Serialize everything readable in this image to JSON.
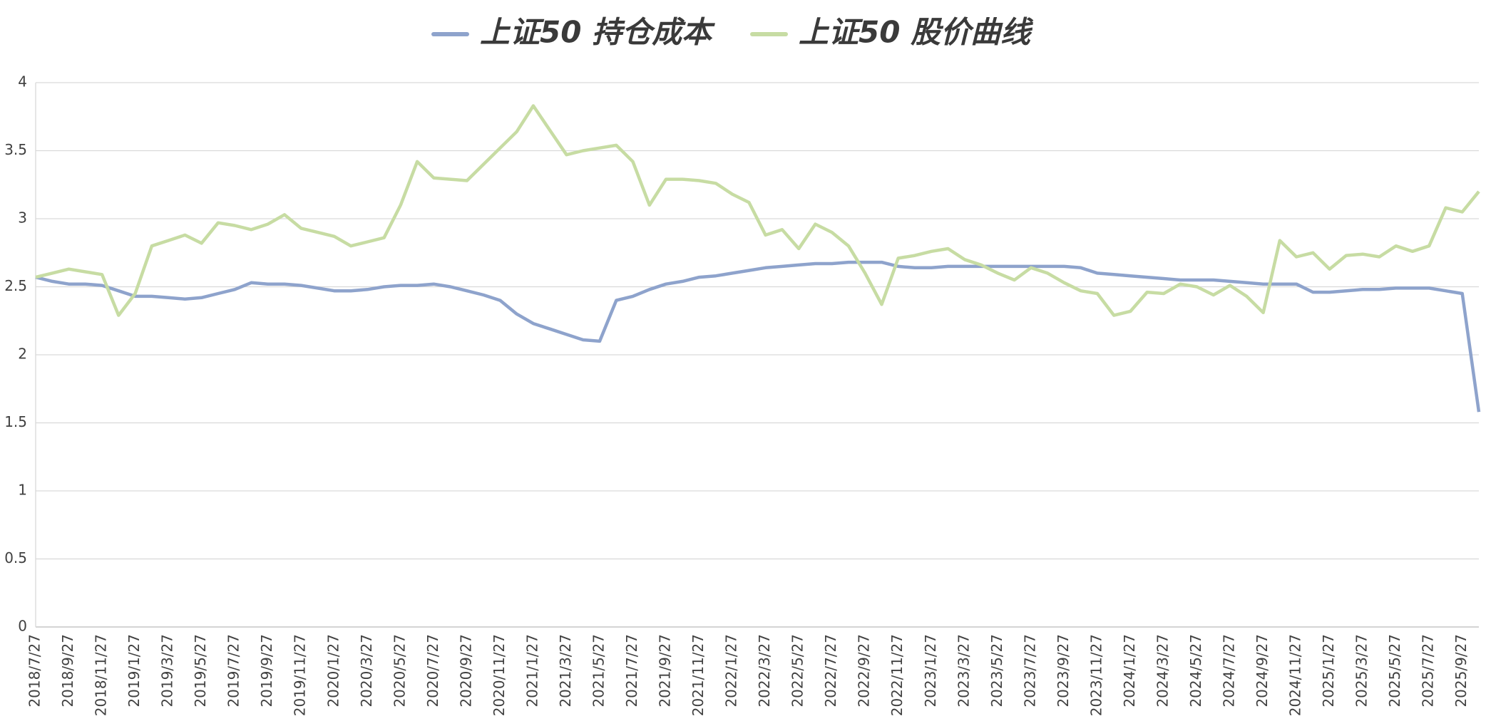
{
  "chart_data": {
    "type": "line",
    "categories": [
      "2018/7/27",
      null,
      "2018/9/27",
      null,
      "2018/11/27",
      null,
      "2019/1/27",
      null,
      "2019/3/27",
      null,
      "2019/5/27",
      null,
      "2019/7/27",
      null,
      "2019/9/27",
      null,
      "2019/11/27",
      null,
      "2020/1/27",
      null,
      "2020/3/27",
      null,
      "2020/5/27",
      null,
      "2020/7/27",
      null,
      "2020/9/27",
      null,
      "2020/11/27",
      null,
      "2021/1/27",
      null,
      "2021/3/27",
      null,
      "2021/5/27",
      null,
      "2021/7/27",
      null,
      "2021/9/27",
      null,
      "2021/11/27",
      null,
      "2022/1/27",
      null,
      "2022/3/27",
      null,
      "2022/5/27",
      null,
      "2022/7/27",
      null,
      "2022/9/27",
      null,
      "2022/11/27",
      null,
      "2023/1/27",
      null,
      "2023/3/27",
      null,
      "2023/5/27",
      null,
      "2023/7/27",
      null,
      "2023/9/27",
      null,
      "2023/11/27",
      null,
      "2024/1/27",
      null,
      "2024/3/27",
      null,
      "2024/5/27",
      null,
      "2024/7/27",
      null,
      "2024/9/27",
      null,
      "2024/11/27",
      null,
      "2025/1/27",
      null,
      "2025/3/27",
      null,
      "2025/5/27",
      null,
      "2025/7/27",
      null,
      "2025/9/27",
      null
    ],
    "series": [
      {
        "name": "上证50 持仓成本",
        "color": "#8ea3cc",
        "values": [
          2.57,
          2.54,
          2.52,
          2.52,
          2.51,
          2.47,
          2.43,
          2.43,
          2.42,
          2.41,
          2.42,
          2.45,
          2.48,
          2.53,
          2.52,
          2.52,
          2.51,
          2.49,
          2.47,
          2.47,
          2.48,
          2.5,
          2.51,
          2.51,
          2.52,
          2.5,
          2.47,
          2.44,
          2.4,
          2.3,
          2.23,
          2.19,
          2.15,
          2.11,
          2.1,
          2.4,
          2.43,
          2.48,
          2.52,
          2.54,
          2.57,
          2.58,
          2.6,
          2.62,
          2.64,
          2.65,
          2.66,
          2.67,
          2.67,
          2.68,
          2.68,
          2.68,
          2.65,
          2.64,
          2.64,
          2.65,
          2.65,
          2.65,
          2.65,
          2.65,
          2.65,
          2.65,
          2.65,
          2.64,
          2.6,
          2.59,
          2.58,
          2.57,
          2.56,
          2.55,
          2.55,
          2.55,
          2.54,
          2.53,
          2.52,
          2.52,
          2.52,
          2.46,
          2.46,
          2.47,
          2.48,
          2.48,
          2.49,
          2.49,
          2.49,
          2.47,
          2.45,
          1.58
        ]
      },
      {
        "name": "上证50 股价曲线",
        "color": "#c7dca3",
        "values": [
          2.57,
          2.6,
          2.63,
          2.61,
          2.59,
          2.29,
          2.45,
          2.8,
          2.84,
          2.88,
          2.82,
          2.97,
          2.95,
          2.92,
          2.96,
          3.03,
          2.93,
          2.9,
          2.87,
          2.8,
          2.83,
          2.86,
          3.1,
          3.42,
          3.3,
          3.29,
          3.28,
          3.4,
          3.52,
          3.64,
          3.83,
          3.65,
          3.47,
          3.5,
          3.52,
          3.54,
          3.42,
          3.1,
          3.29,
          3.29,
          3.28,
          3.26,
          3.18,
          3.12,
          2.88,
          2.92,
          2.78,
          2.96,
          2.9,
          2.8,
          2.6,
          2.37,
          2.71,
          2.73,
          2.76,
          2.78,
          2.7,
          2.66,
          2.6,
          2.55,
          2.64,
          2.6,
          2.53,
          2.47,
          2.45,
          2.29,
          2.32,
          2.46,
          2.45,
          2.52,
          2.5,
          2.44,
          2.51,
          2.43,
          2.31,
          2.84,
          2.72,
          2.75,
          2.63,
          2.73,
          2.74,
          2.72,
          2.8,
          2.76,
          2.8,
          3.08,
          3.05,
          3.2
        ]
      }
    ],
    "ylim": [
      0,
      4
    ],
    "yticks": [
      0,
      0.5,
      1,
      1.5,
      2,
      2.5,
      3,
      3.5,
      4
    ],
    "grid": true,
    "legend": "top"
  }
}
